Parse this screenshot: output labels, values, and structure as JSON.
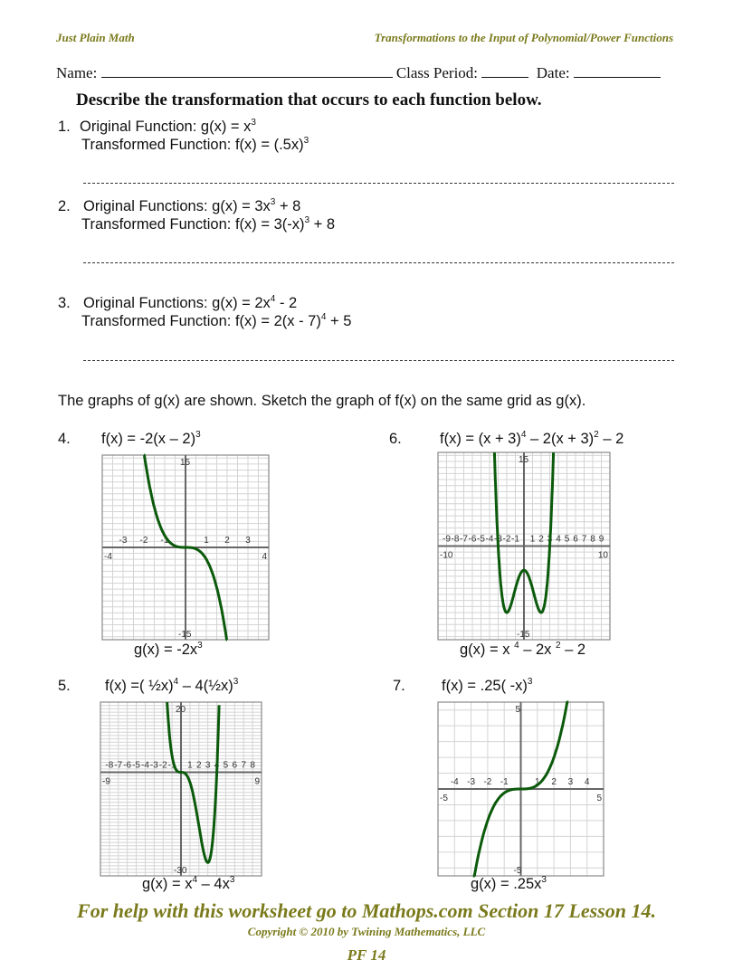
{
  "header": {
    "left": "Just Plain Math",
    "right": "Transformations to the Input of Polynomial/Power Functions"
  },
  "student_info": {
    "name_label": "Name:",
    "class_period_label": "Class Period:",
    "date_label": "Date:"
  },
  "instructions": "Describe the transformation that occurs to each function below.",
  "describe_problems": [
    {
      "number": "1.",
      "original": [
        {
          "t": "Original Function:  g(x) = x"
        },
        {
          "s": "3"
        }
      ],
      "transformed": [
        {
          "t": "Transformed Function: f(x) =  (.5x)"
        },
        {
          "s": "3"
        }
      ]
    },
    {
      "number": "2.",
      "original": [
        {
          "t": "Original Functions:  g(x) = 3x"
        },
        {
          "s": "3"
        },
        {
          "t": " + 8"
        }
      ],
      "transformed": [
        {
          "t": "Transformed Function: f(x) =  3(-x)"
        },
        {
          "s": "3"
        },
        {
          "t": " + 8"
        }
      ]
    },
    {
      "number": "3.",
      "original": [
        {
          "t": "Original Functions:  g(x) = 2x"
        },
        {
          "s": "4"
        },
        {
          "t": " - 2"
        }
      ],
      "transformed": [
        {
          "t": "Transformed Function: f(x) =  2(x - 7)"
        },
        {
          "s": "4"
        },
        {
          "t": " + 5"
        }
      ]
    }
  ],
  "graph_instructions": "The graphs of g(x) are shown.  Sketch the graph of f(x) on the same grid as g(x).",
  "graph_problems": {
    "p4": {
      "number": "4.",
      "f": [
        {
          "t": "f(x) = -2(x – 2)"
        },
        {
          "s": "3"
        }
      ],
      "g": [
        {
          "t": "g(x) = -2x"
        },
        {
          "s": "3"
        }
      ],
      "x_ticks": [
        "-3",
        "-2",
        "-1",
        "1",
        "2",
        "3"
      ],
      "x_ends": [
        "-4",
        "4"
      ],
      "y_ends": [
        "15",
        "-15"
      ],
      "curve_color": "#0b5a0b"
    },
    "p6": {
      "number": "6.",
      "f": [
        {
          "t": "f(x) = (x + 3)"
        },
        {
          "s": "4"
        },
        {
          "t": " – 2(x + 3)"
        },
        {
          "s": "2"
        },
        {
          "t": " – 2"
        }
      ],
      "g": [
        {
          "t": "g(x) = x "
        },
        {
          "s": "4"
        },
        {
          "t": " – 2x "
        },
        {
          "s": "2"
        },
        {
          "t": " – 2"
        }
      ],
      "x_ticks": [
        "-9",
        "-8",
        "-7",
        "-6",
        "-5",
        "-4",
        "-3",
        "-2",
        "-1",
        "1",
        "2",
        "3",
        "4",
        "5",
        "6",
        "7",
        "8",
        "9"
      ],
      "x_ends": [
        "-10",
        "10"
      ],
      "y_ends": [
        "15",
        "-15"
      ],
      "curve_color": "#0b5a0b"
    },
    "p5": {
      "number": "5.",
      "f": [
        {
          "t": "f(x) =( ½x)"
        },
        {
          "s": "4"
        },
        {
          "t": " – 4(½x)"
        },
        {
          "s": "3"
        }
      ],
      "g": [
        {
          "t": "g(x) = x"
        },
        {
          "s": "4"
        },
        {
          "t": " – 4x"
        },
        {
          "s": "3"
        }
      ],
      "x_ticks": [
        "-8",
        "-7",
        "-6",
        "-5",
        "-4",
        "-3",
        "-2",
        "-1",
        "1",
        "2",
        "3",
        "4",
        "5",
        "6",
        "7",
        "8"
      ],
      "x_ends": [
        "-9",
        "9"
      ],
      "y_ends": [
        "20",
        "-30"
      ],
      "curve_color": "#0b5a0b"
    },
    "p7": {
      "number": "7.",
      "f": [
        {
          "t": "f(x) =  .25( -x)"
        },
        {
          "s": "3"
        }
      ],
      "g": [
        {
          "t": "g(x) =  .25x"
        },
        {
          "s": "3"
        }
      ],
      "x_ticks": [
        "-4",
        "-3",
        "-2",
        "-1",
        "1",
        "2",
        "3",
        "4"
      ],
      "x_ends": [
        "-5",
        "5"
      ],
      "y_ends": [
        "5",
        "-5"
      ],
      "curve_color": "#0b5a0b"
    }
  },
  "footer": {
    "help": "For help with this worksheet go to Mathops.com Section 17 Lesson 14.",
    "copyright": "Copyright © 2010 by Twining Mathematics, LLC",
    "page": "PF 14"
  },
  "colors": {
    "accent": "#7a7a1c",
    "curve": "#0b5a0b",
    "grid": "#d4d4d4",
    "axis": "#666666"
  }
}
